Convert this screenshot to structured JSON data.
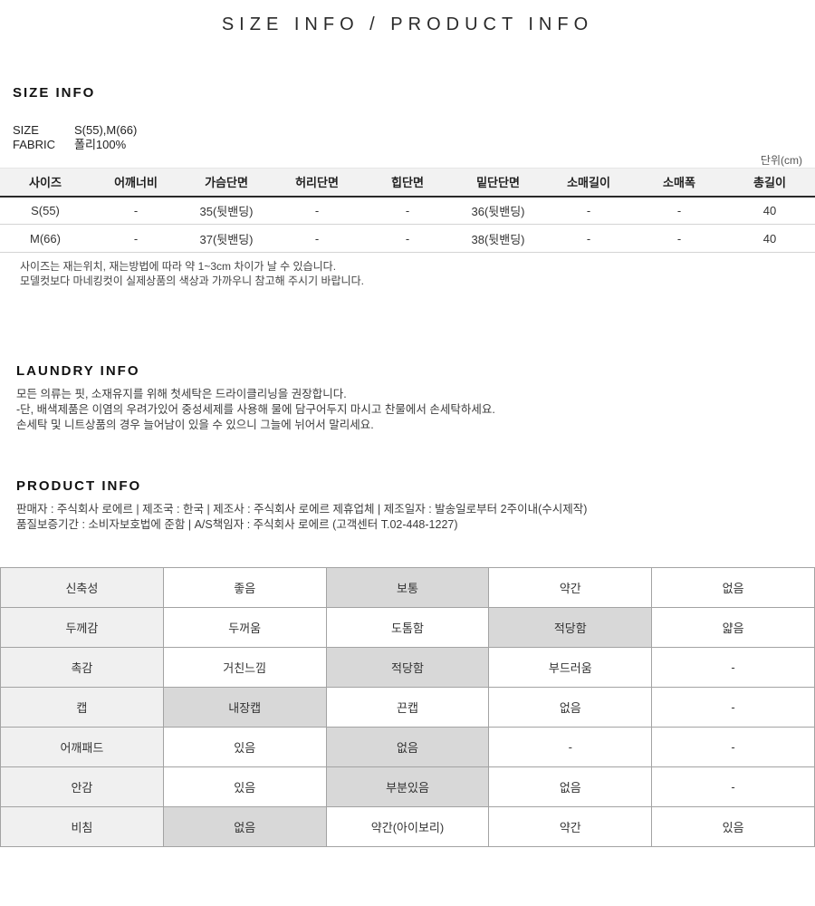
{
  "page_title": "SIZE INFO / PRODUCT INFO",
  "size_info": {
    "heading": "SIZE INFO",
    "specs": [
      {
        "label": "SIZE",
        "value": "S(55),M(66)"
      },
      {
        "label": "FABRIC",
        "value": "폴리100%"
      }
    ],
    "unit_note": "단위(cm)",
    "table": {
      "headers": [
        "사이즈",
        "어깨너비",
        "가슴단면",
        "허리단면",
        "힙단면",
        "밑단단면",
        "소매길이",
        "소매폭",
        "총길이"
      ],
      "rows": [
        [
          "S(55)",
          "-",
          "35(뒷밴딩)",
          "-",
          "-",
          "36(뒷밴딩)",
          "-",
          "-",
          "40"
        ],
        [
          "M(66)",
          "-",
          "37(뒷밴딩)",
          "-",
          "-",
          "38(뒷밴딩)",
          "-",
          "-",
          "40"
        ]
      ]
    },
    "notes": [
      "사이즈는 재는위치, 재는방법에 따라 약 1~3cm 차이가 날 수 있습니다.",
      "모델컷보다 마네킹컷이 실제상품의 색상과 가까우니 참고해 주시기 바랍니다."
    ]
  },
  "laundry_info": {
    "heading": "LAUNDRY INFO",
    "lines": [
      "모든 의류는 핏, 소재유지를 위해 첫세탁은 드라이클리닝을 권장합니다.",
      "-단, 배색제품은 이염의 우려가있어 중성세제를 사용해 물에 담구어두지 마시고 찬물에서 손세탁하세요.",
      "손세탁 및 니트상품의 경우 늘어남이 있을 수 있으니 그늘에 뉘어서 말리세요."
    ]
  },
  "product_info": {
    "heading": "PRODUCT INFO",
    "lines": [
      "판매자 : 주식회사 로에르 | 제조국 : 한국 | 제조사 : 주식회사 로에르 제휴업체 | 제조일자 : 발송일로부터 2주이내(수시제작)",
      "품질보증기간 : 소비자보호법에 준함 | A/S책임자 : 주식회사 로에르 (고객센터 T.02-448-1227)"
    ]
  },
  "attribute_table": {
    "rows": [
      {
        "label": "신축성",
        "values": [
          "좋음",
          "보통",
          "약간",
          "없음"
        ],
        "highlight_index": 1
      },
      {
        "label": "두께감",
        "values": [
          "두꺼움",
          "도톰함",
          "적당함",
          "얇음"
        ],
        "highlight_index": 2
      },
      {
        "label": "촉감",
        "values": [
          "거친느낌",
          "적당함",
          "부드러움",
          "-"
        ],
        "highlight_index": 1
      },
      {
        "label": "캡",
        "values": [
          "내장캡",
          "끈캡",
          "없음",
          "-"
        ],
        "highlight_index": 0
      },
      {
        "label": "어깨패드",
        "values": [
          "있음",
          "없음",
          "-",
          "-"
        ],
        "highlight_index": 1
      },
      {
        "label": "안감",
        "values": [
          "있음",
          "부분있음",
          "없음",
          "-"
        ],
        "highlight_index": 1
      },
      {
        "label": "비침",
        "values": [
          "없음",
          "약간(아이보리)",
          "약간",
          "있음"
        ],
        "highlight_index": 0
      }
    ]
  },
  "colors": {
    "highlight_cell": "#d8d8d8",
    "label_cell": "#f0f0f0",
    "header_cell": "#f2f2f2",
    "header_rule": "#2a2a2a",
    "table_border": "#a3a3a3"
  }
}
